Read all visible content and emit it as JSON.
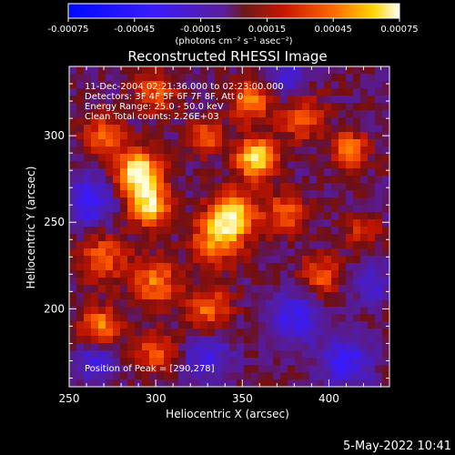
{
  "colorbar": {
    "tick_labels": [
      "-0.00075",
      "-0.00045",
      "-0.00015",
      "0.00015",
      "0.00045",
      "0.00075"
    ],
    "unit_label": "(photons cm⁻² s⁻¹ asec⁻²)",
    "range": [
      -0.00075,
      0.00075
    ]
  },
  "plot": {
    "title": "Reconstructed RHESSI Image",
    "annotations": [
      "11-Dec-2004 02:21:36.000 to 02:23:00.000",
      "Detectors: 3F 4F 5F 6F 7F 8F, Att 0",
      "Energy Range: 25.0 - 50.0 keV",
      "Clean     Total counts: 2.26E+03"
    ],
    "peak_label": "Position of Peak = [290,278]"
  },
  "footer": {
    "timestamp": "5-May-2022 10:41"
  },
  "chart_data": {
    "type": "heatmap",
    "title": "Reconstructed RHESSI Image",
    "xlabel": "Heliocentric X (arcsec)",
    "ylabel": "Heliocentric Y (arcsec)",
    "xlim": [
      250,
      435
    ],
    "ylim": [
      155,
      340
    ],
    "x_ticks": [
      250,
      300,
      350,
      400
    ],
    "y_ticks": [
      200,
      250,
      300
    ],
    "peak": [
      290,
      278
    ],
    "colorscale": "red-temperature (blue negative, purple zero, red/yellow/white positive)",
    "blobs": [
      {
        "x": 290,
        "y": 278,
        "amp": 1.0,
        "sigma": 9
      },
      {
        "x": 297,
        "y": 259,
        "amp": 0.8,
        "sigma": 8
      },
      {
        "x": 358,
        "y": 287,
        "amp": 0.9,
        "sigma": 8
      },
      {
        "x": 345,
        "y": 255,
        "amp": 0.85,
        "sigma": 9
      },
      {
        "x": 335,
        "y": 240,
        "amp": 0.6,
        "sigma": 10
      },
      {
        "x": 270,
        "y": 300,
        "amp": 0.5,
        "sigma": 8
      },
      {
        "x": 270,
        "y": 230,
        "amp": 0.45,
        "sigma": 10
      },
      {
        "x": 300,
        "y": 215,
        "amp": 0.55,
        "sigma": 9
      },
      {
        "x": 330,
        "y": 200,
        "amp": 0.5,
        "sigma": 9
      },
      {
        "x": 268,
        "y": 190,
        "amp": 0.55,
        "sigma": 8
      },
      {
        "x": 300,
        "y": 175,
        "amp": 0.45,
        "sigma": 8
      },
      {
        "x": 375,
        "y": 255,
        "amp": 0.5,
        "sigma": 8
      },
      {
        "x": 385,
        "y": 310,
        "amp": 0.45,
        "sigma": 9
      },
      {
        "x": 412,
        "y": 292,
        "amp": 0.6,
        "sigma": 7
      },
      {
        "x": 395,
        "y": 220,
        "amp": 0.45,
        "sigma": 8
      },
      {
        "x": 355,
        "y": 320,
        "amp": 0.55,
        "sigma": 8
      },
      {
        "x": 300,
        "y": 325,
        "amp": 0.45,
        "sigma": 8
      },
      {
        "x": 420,
        "y": 245,
        "amp": 0.35,
        "sigma": 7
      },
      {
        "x": 330,
        "y": 300,
        "amp": 0.45,
        "sigma": 7
      }
    ],
    "negatives": [
      {
        "x": 262,
        "y": 262,
        "amp": 0.5,
        "sigma": 10
      },
      {
        "x": 330,
        "y": 172,
        "amp": 0.45,
        "sigma": 9
      },
      {
        "x": 380,
        "y": 195,
        "amp": 0.5,
        "sigma": 10
      },
      {
        "x": 410,
        "y": 170,
        "amp": 0.55,
        "sigma": 10
      },
      {
        "x": 265,
        "y": 170,
        "amp": 0.4,
        "sigma": 8
      },
      {
        "x": 375,
        "y": 335,
        "amp": 0.4,
        "sigma": 8
      },
      {
        "x": 425,
        "y": 215,
        "amp": 0.35,
        "sigma": 8
      }
    ]
  }
}
